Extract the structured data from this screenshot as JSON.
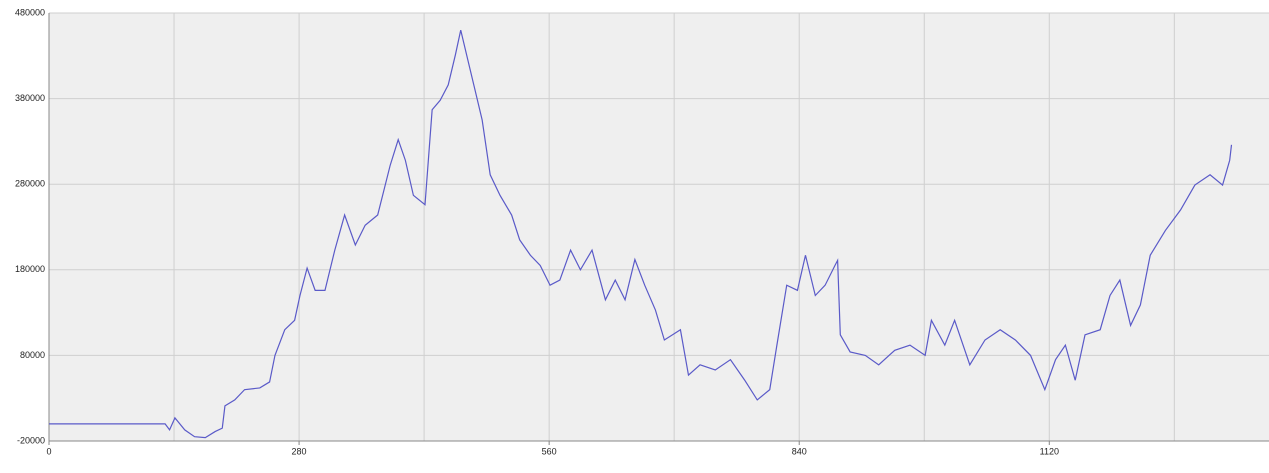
{
  "chart_data": {
    "type": "line",
    "xlim": [
      0,
      1366
    ],
    "ylim": [
      -20000,
      480000
    ],
    "xticks": [
      0,
      280,
      560,
      840,
      1120
    ],
    "x_minor_gridlines": [
      140,
      420,
      700,
      980,
      1260
    ],
    "yticks": [
      -20000,
      80000,
      180000,
      280000,
      380000,
      480000
    ],
    "grid": true,
    "series": [
      {
        "color": "#5a5ac8",
        "x": [
          0,
          130,
          135,
          141,
          152,
          163,
          175,
          186,
          194,
          197,
          208,
          219,
          236,
          247,
          253,
          264,
          275,
          281,
          289,
          298,
          309,
          320,
          331,
          343,
          354,
          368,
          382,
          391,
          399,
          408,
          421,
          429,
          438,
          447,
          455,
          461,
          469,
          477,
          485,
          494,
          505,
          518,
          527,
          539,
          550,
          561,
          572,
          584,
          595,
          608,
          623,
          634,
          645,
          656,
          667,
          679,
          689,
          707,
          716,
          729,
          746,
          763,
          779,
          793,
          807,
          815,
          826,
          838,
          847,
          858,
          869,
          880,
          883,
          886,
          897,
          914,
          929,
          947,
          964,
          981,
          988,
          1003,
          1014,
          1031,
          1048,
          1065,
          1082,
          1099,
          1115,
          1127,
          1138,
          1149,
          1160,
          1177,
          1188,
          1199,
          1211,
          1222,
          1233,
          1250,
          1267,
          1283,
          1300,
          1314,
          1322,
          1324
        ],
        "values": [
          0,
          0,
          -7000,
          7000,
          -7000,
          -15000,
          -16000,
          -9000,
          -5000,
          21000,
          28000,
          40000,
          42000,
          49000,
          80000,
          110000,
          121000,
          150000,
          182000,
          156000,
          156000,
          203000,
          244000,
          209000,
          232000,
          244000,
          302000,
          332000,
          308000,
          267000,
          256000,
          367000,
          378000,
          396000,
          431000,
          460000,
          425000,
          390000,
          355000,
          291000,
          267000,
          244000,
          215000,
          197000,
          185000,
          162000,
          168000,
          203000,
          180000,
          203000,
          145000,
          168000,
          145000,
          192000,
          162000,
          133000,
          98000,
          110000,
          57000,
          69000,
          63000,
          75000,
          51000,
          28000,
          40000,
          92000,
          162000,
          156000,
          197000,
          150000,
          162000,
          185000,
          191000,
          104000,
          84000,
          80000,
          69000,
          86000,
          92000,
          80000,
          121000,
          92000,
          121000,
          69000,
          98000,
          110000,
          98000,
          80000,
          40000,
          75000,
          92000,
          51000,
          104000,
          110000,
          150000,
          168000,
          115000,
          139000,
          197000,
          226000,
          250000,
          279000,
          291000,
          279000,
          308000,
          326000
        ]
      }
    ]
  }
}
